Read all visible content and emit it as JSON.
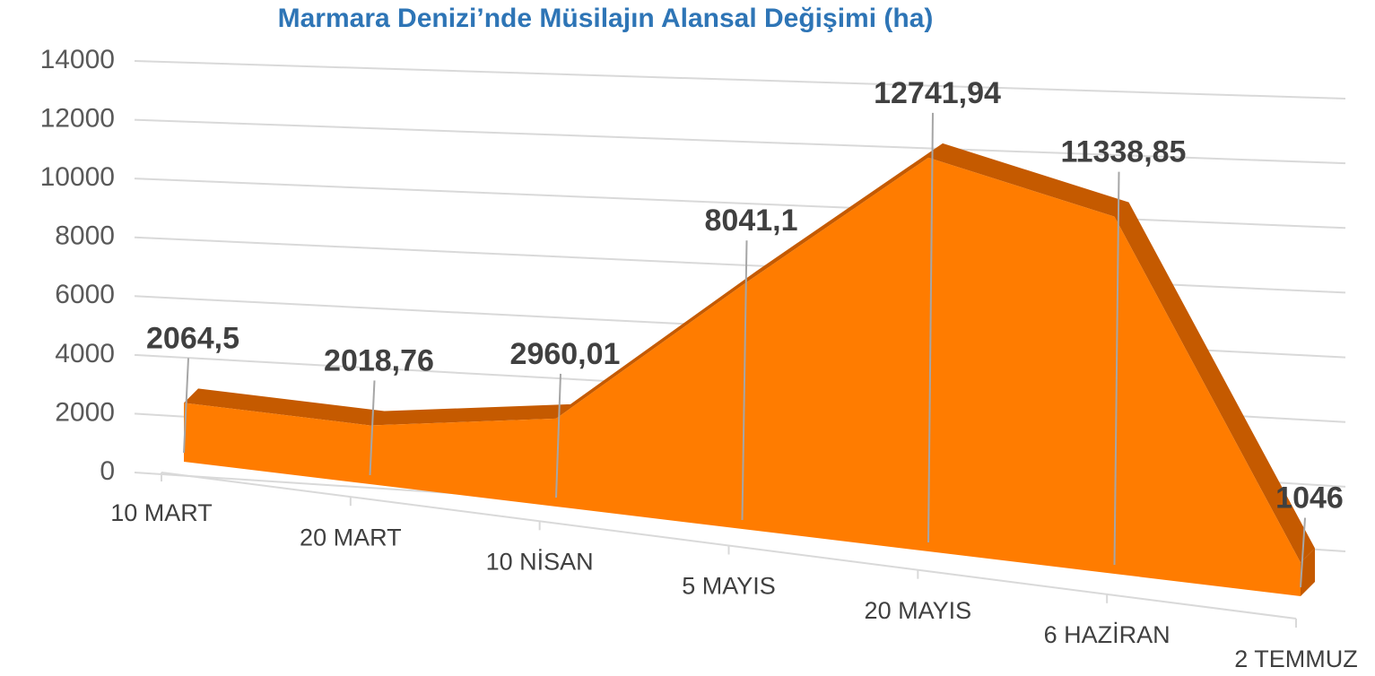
{
  "chart_data": {
    "type": "area3d",
    "title": "Marmara Denizi’nde Müsilajın Alansal Değişimi (ha)",
    "categories": [
      "10 MART",
      "20 MART",
      "10 NİSAN",
      "5 MAYIS",
      "20 MAYIS",
      "6 HAZİRAN",
      "2 TEMMUZ"
    ],
    "values": [
      2064.5,
      2018.76,
      2960.01,
      8041.1,
      12741.94,
      11338.85,
      1046
    ],
    "value_labels": [
      "2064,5",
      "2018,76",
      "2960,01",
      "8041,1",
      "12741,94",
      "11338,85",
      "1046"
    ],
    "color": "#ff7c00",
    "ylim": [
      0,
      14000
    ],
    "yticks": [
      0,
      2000,
      4000,
      6000,
      8000,
      10000,
      12000,
      14000
    ],
    "grid": true
  }
}
